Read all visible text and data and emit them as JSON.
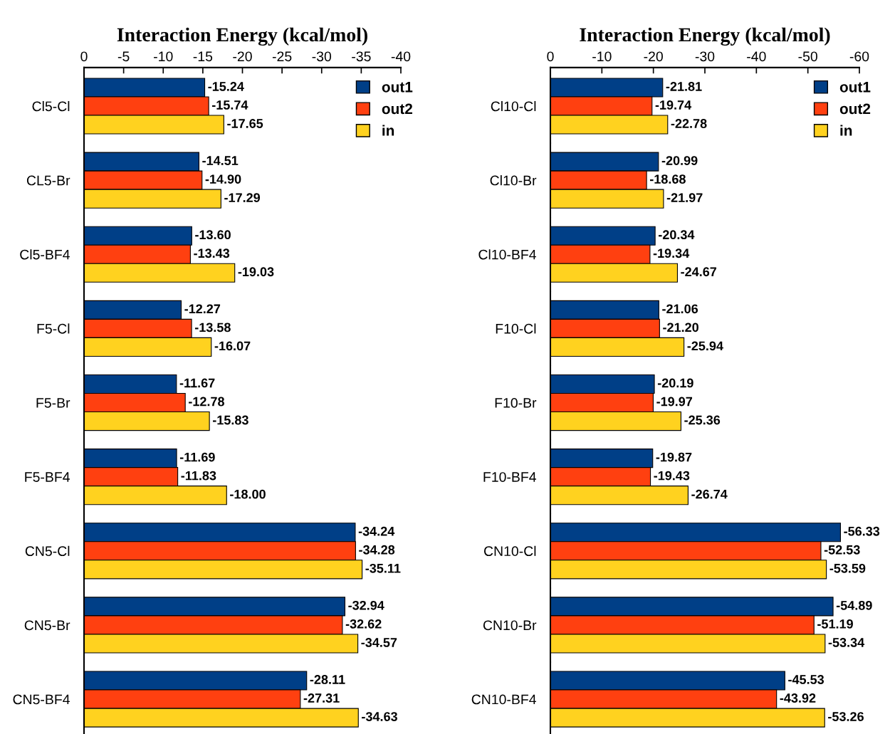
{
  "chart_data": [
    {
      "type": "bar",
      "orientation": "horizontal",
      "xlabel": "Interaction Energy (kcal/mol)",
      "categories": [
        "Cl5-Cl",
        "CL5-Br",
        "Cl5-BF4",
        "F5-Cl",
        "F5-Br",
        "F5-BF4",
        "CN5-Cl",
        "CN5-Br",
        "CN5-BF4"
      ],
      "series": [
        {
          "name": "out1",
          "color": "#003f87",
          "values": [
            -15.24,
            -14.51,
            -13.6,
            -12.27,
            -11.67,
            -11.69,
            -34.24,
            -32.94,
            -28.11
          ],
          "value_labels": [
            "-15.24",
            "-14.51",
            "-13.60",
            "-12.27",
            "-11.67",
            "-11.69",
            "-34.24",
            "-32.94",
            "-28.11"
          ]
        },
        {
          "name": "out2",
          "color": "#ff4010",
          "values": [
            -15.74,
            -14.9,
            -13.43,
            -13.58,
            -12.78,
            -11.83,
            -34.28,
            -32.62,
            -27.31
          ],
          "value_labels": [
            "-15.74",
            "-14.90",
            "-13.43",
            "-13.58",
            "-12.78",
            "-11.83",
            "-34.28",
            "-32.62",
            "-27.31"
          ]
        },
        {
          "name": "in",
          "color": "#ffd21f",
          "values": [
            -17.65,
            -17.29,
            -19.03,
            -16.07,
            -15.83,
            -18.0,
            -35.11,
            -34.57,
            -34.63
          ],
          "value_labels": [
            "-17.65",
            "-17.29",
            "-19.03",
            "-16.07",
            "-15.83",
            "-18.00",
            "-35.11",
            "-34.57",
            "-34.63"
          ]
        }
      ],
      "xlim": [
        0,
        -40
      ],
      "xticks": [
        0,
        -5,
        -10,
        -15,
        -20,
        -25,
        -30,
        -35,
        -40
      ],
      "grid": false,
      "legend": "top right"
    },
    {
      "type": "bar",
      "orientation": "horizontal",
      "xlabel": "Interaction Energy (kcal/mol)",
      "categories": [
        "Cl10-Cl",
        "Cl10-Br",
        "Cl10-BF4",
        "F10-Cl",
        "F10-Br",
        "F10-BF4",
        "CN10-Cl",
        "CN10-Br",
        "CN10-BF4"
      ],
      "series": [
        {
          "name": "out1",
          "color": "#003f87",
          "values": [
            -21.81,
            -20.99,
            -20.34,
            -21.06,
            -20.19,
            -19.87,
            -56.33,
            -54.89,
            -45.53
          ],
          "value_labels": [
            "-21.81",
            "-20.99",
            "-20.34",
            "-21.06",
            "-20.19",
            "-19.87",
            "-56.33",
            "-54.89",
            "-45.53"
          ]
        },
        {
          "name": "out2",
          "color": "#ff4010",
          "values": [
            -19.74,
            -18.68,
            -19.34,
            -21.2,
            -19.97,
            -19.43,
            -52.53,
            -51.19,
            -43.92
          ],
          "value_labels": [
            "-19.74",
            "-18.68",
            "-19.34",
            "-21.20",
            "-19.97",
            "-19.43",
            "-52.53",
            "-51.19",
            "-43.92"
          ]
        },
        {
          "name": "in",
          "color": "#ffd21f",
          "values": [
            -22.78,
            -21.97,
            -24.67,
            -25.94,
            -25.36,
            -26.74,
            -53.59,
            -53.34,
            -53.26
          ],
          "value_labels": [
            "-22.78",
            "-21.97",
            "-24.67",
            "-25.94",
            "-25.36",
            "-26.74",
            "-53.59",
            "-53.34",
            "-53.26"
          ]
        }
      ],
      "xlim": [
        0,
        -60
      ],
      "xticks": [
        0,
        -10,
        -20,
        -30,
        -40,
        -50,
        -60
      ],
      "grid": false,
      "legend": "top right"
    }
  ]
}
